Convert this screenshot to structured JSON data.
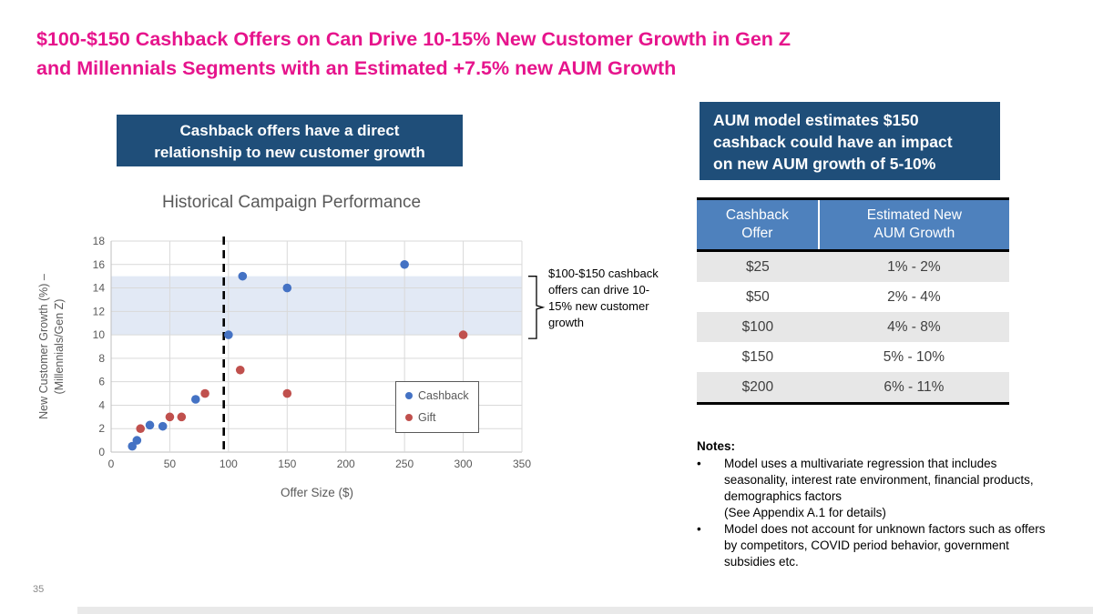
{
  "slide": {
    "title": "$100-$150 Cashback Offers on Can Drive 10-15% New Customer Growth in Gen Z\nand Millennials Segments with an Estimated +7.5% new AUM Growth",
    "page_number": "35"
  },
  "colors": {
    "title_pink": "#E6148C",
    "navy_box": "#1F4E79",
    "table_header_blue": "#4E81BD",
    "row_alt_gray": "#E7E7E7",
    "cashback_blue": "#4472C4",
    "gift_red": "#C0504D",
    "band_fill": "#E2E9F5"
  },
  "left_callout": {
    "text": "Cashback offers have a direct\nrelationship to new customer growth"
  },
  "right_callout": {
    "text": "AUM model estimates $150\ncashback could have an impact\non new AUM growth of 5-10%"
  },
  "chart_data": {
    "type": "scatter",
    "title": "Historical Campaign Performance",
    "xlabel": "Offer Size ($)",
    "ylabel": "New Customer Growth (%) –\n(Millennials/Gen Z)",
    "xlim": [
      0,
      350
    ],
    "ylim": [
      0,
      18
    ],
    "x_ticks": [
      0,
      50,
      100,
      150,
      200,
      250,
      300,
      350
    ],
    "y_ticks": [
      0,
      2,
      4,
      6,
      8,
      10,
      12,
      14,
      16,
      18
    ],
    "grid": true,
    "legend_position": "inside-right",
    "series": [
      {
        "name": "Cashback",
        "color": "#4472C4",
        "points": [
          [
            18,
            0.5
          ],
          [
            22,
            1
          ],
          [
            33,
            2.3
          ],
          [
            44,
            2.2
          ],
          [
            72,
            4.5
          ],
          [
            100,
            10
          ],
          [
            112,
            15
          ],
          [
            150,
            14
          ],
          [
            250,
            16
          ]
        ]
      },
      {
        "name": "Gift",
        "color": "#C0504D",
        "points": [
          [
            25,
            2
          ],
          [
            50,
            3
          ],
          [
            60,
            3
          ],
          [
            80,
            5
          ],
          [
            110,
            7
          ],
          [
            150,
            5
          ],
          [
            300,
            10
          ]
        ]
      }
    ],
    "highlight_band": {
      "y_from": 10,
      "y_to": 15,
      "color": "#E2E9F5"
    },
    "dashed_vline_x": 96,
    "annotation": "$100-$150 cashback offers can drive 10-15% new customer growth"
  },
  "table": {
    "headers": [
      "Cashback\nOffer",
      "Estimated New\nAUM Growth"
    ],
    "rows": [
      [
        "$25",
        "1% - 2%"
      ],
      [
        "$50",
        "2% - 4%"
      ],
      [
        "$100",
        "4% - 8%"
      ],
      [
        "$150",
        "5% - 10%"
      ],
      [
        "$200",
        "6% - 11%"
      ]
    ]
  },
  "notes": {
    "title": "Notes:",
    "bullets": [
      "Model uses a multivariate regression that includes seasonality, interest rate environment, financial products, demographics factors\n(See Appendix A.1 for details)",
      "Model does not account for unknown factors such as offers by competitors, COVID period behavior, government subsidies etc."
    ]
  }
}
